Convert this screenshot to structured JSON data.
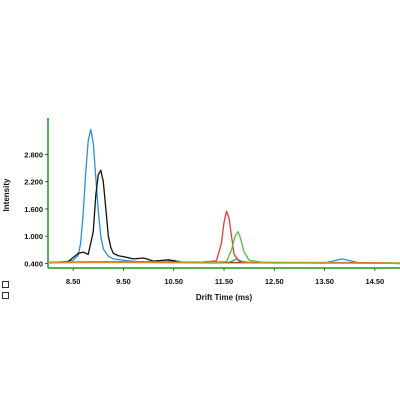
{
  "chart_data": {
    "type": "line",
    "title": "",
    "xlabel": "Drift Time (ms)",
    "ylabel": "Intensity",
    "xlim": [
      8.0,
      15.0
    ],
    "ylim": [
      0.3,
      3.6
    ],
    "x_ticks": [
      "8.50",
      "9.50",
      "10.50",
      "11.50",
      "12.50",
      "13.50",
      "14.50"
    ],
    "x_tick_values": [
      8.5,
      9.5,
      10.5,
      11.5,
      12.5,
      13.5,
      14.5
    ],
    "y_ticks": [
      "0.400",
      "1.000",
      "1.600",
      "2.200",
      "2.800"
    ],
    "y_tick_values": [
      0.4,
      1.0,
      1.6,
      2.2,
      2.8
    ],
    "grid": false,
    "axis_color": "#1a9a1a",
    "series": [
      {
        "color": "#2a8fd6",
        "x": [
          8.0,
          8.3,
          8.5,
          8.6,
          8.65,
          8.7,
          8.75,
          8.8,
          8.85,
          8.9,
          8.95,
          9.0,
          9.05,
          9.1,
          9.2,
          9.3,
          9.5,
          9.8,
          10.3,
          10.5,
          10.7,
          11.3,
          11.6,
          11.75,
          11.9,
          12.5,
          13.5,
          13.85,
          14.2,
          15.0
        ],
        "y": [
          0.42,
          0.43,
          0.47,
          0.58,
          0.85,
          1.5,
          2.4,
          3.1,
          3.35,
          3.05,
          2.3,
          1.55,
          1.0,
          0.72,
          0.56,
          0.5,
          0.47,
          0.44,
          0.42,
          0.47,
          0.42,
          0.41,
          0.42,
          0.5,
          0.42,
          0.41,
          0.41,
          0.5,
          0.41,
          0.4
        ]
      },
      {
        "color": "#111111",
        "x": [
          8.0,
          8.4,
          8.6,
          8.7,
          8.8,
          8.9,
          8.95,
          9.0,
          9.05,
          9.1,
          9.15,
          9.2,
          9.25,
          9.3,
          9.4,
          9.5,
          9.7,
          9.9,
          10.1,
          10.4,
          10.6,
          11.5,
          12.5,
          13.5,
          14.5,
          15.0
        ],
        "y": [
          0.42,
          0.44,
          0.62,
          0.65,
          0.6,
          1.1,
          1.9,
          2.35,
          2.45,
          2.2,
          1.6,
          1.0,
          0.75,
          0.62,
          0.57,
          0.55,
          0.5,
          0.52,
          0.45,
          0.48,
          0.43,
          0.42,
          0.42,
          0.41,
          0.41,
          0.4
        ]
      },
      {
        "color": "#e23c3c",
        "x": [
          8.0,
          9.0,
          10.0,
          11.0,
          11.35,
          11.45,
          11.5,
          11.55,
          11.6,
          11.65,
          11.7,
          11.8,
          12.0,
          13.0,
          14.0,
          15.0
        ],
        "y": [
          0.42,
          0.44,
          0.44,
          0.42,
          0.46,
          0.85,
          1.3,
          1.55,
          1.4,
          1.0,
          0.6,
          0.45,
          0.42,
          0.42,
          0.42,
          0.41
        ]
      },
      {
        "color": "#4cc83c",
        "x": [
          8.0,
          9.0,
          10.0,
          11.0,
          11.55,
          11.65,
          11.72,
          11.78,
          11.83,
          11.9,
          12.0,
          12.3,
          13.0,
          14.0,
          15.0
        ],
        "y": [
          0.43,
          0.44,
          0.43,
          0.42,
          0.44,
          0.7,
          1.0,
          1.1,
          0.95,
          0.65,
          0.47,
          0.42,
          0.42,
          0.41,
          0.41
        ]
      },
      {
        "color": "#e08a2a",
        "x": [
          8.0,
          8.5,
          9.0,
          10.0,
          11.0,
          12.0,
          13.0,
          14.0,
          15.0
        ],
        "y": [
          0.41,
          0.42,
          0.42,
          0.42,
          0.41,
          0.41,
          0.41,
          0.41,
          0.4
        ]
      }
    ]
  }
}
